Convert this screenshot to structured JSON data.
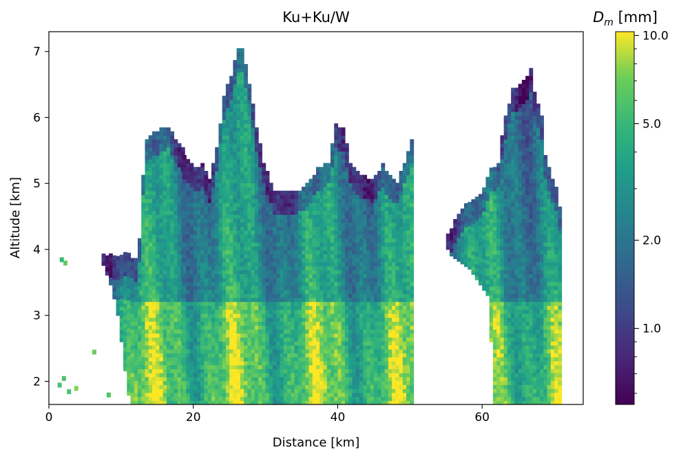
{
  "chart_data": {
    "type": "heatmap",
    "title": "Ku+Ku/W",
    "xlabel": "Distance [km]",
    "ylabel": "Altitude [km]",
    "xlim": [
      0,
      74
    ],
    "ylim": [
      1.65,
      7.3
    ],
    "xticks": [
      {
        "value": 0,
        "label": "0"
      },
      {
        "value": 20,
        "label": "20"
      },
      {
        "value": 40,
        "label": "40"
      },
      {
        "value": 60,
        "label": "60"
      }
    ],
    "yticks": [
      {
        "value": 2,
        "label": "2"
      },
      {
        "value": 3,
        "label": "3"
      },
      {
        "value": 4,
        "label": "4"
      },
      {
        "value": 5,
        "label": "5"
      },
      {
        "value": 6,
        "label": "6"
      },
      {
        "value": 7,
        "label": "7"
      }
    ],
    "colorbar": {
      "label_main": "D",
      "label_sub": "m",
      "label_unit": " [mm]",
      "scale": "log",
      "range": [
        0.55,
        10.3
      ],
      "colormap": "viridis",
      "major_ticks": [
        {
          "value": 1.0,
          "label": "1.0"
        },
        {
          "value": 2.0,
          "label": "2.0"
        },
        {
          "value": 5.0,
          "label": "5.0"
        },
        {
          "value": 10.0,
          "label": "10.0"
        }
      ],
      "minor_ticks": [
        0.6,
        0.7,
        0.8,
        0.9,
        3,
        4,
        6,
        7,
        8,
        9
      ]
    },
    "colors": [
      "#440154",
      "#3b528b",
      "#21918c",
      "#5ec962",
      "#fde725"
    ],
    "regions": [
      {
        "name": "left-cell",
        "x_start": 6.8,
        "x_end": 18.5,
        "top": [
          [
            6.8,
            3.9
          ],
          [
            8,
            3.9
          ],
          [
            9.5,
            3.88
          ],
          [
            10.5,
            3.95
          ],
          [
            11.5,
            3.85
          ],
          [
            12,
            3.8
          ],
          [
            12.5,
            4.4
          ],
          [
            13,
            5.6
          ],
          [
            13.5,
            5.65
          ],
          [
            14,
            5.7
          ],
          [
            14.5,
            5.75
          ],
          [
            15.5,
            5.8
          ],
          [
            16.5,
            5.85
          ],
          [
            17.5,
            5.6
          ],
          [
            18.5,
            5.5
          ]
        ]
      },
      {
        "name": "central-cell",
        "x_start": 18.5,
        "x_end": 50.5,
        "top": [
          [
            18.5,
            5.4
          ],
          [
            20,
            5.2
          ],
          [
            21,
            5.25
          ],
          [
            22,
            5.05
          ],
          [
            23,
            5.5
          ],
          [
            24,
            6.3
          ],
          [
            25,
            6.6
          ],
          [
            25.8,
            7.0
          ],
          [
            26.5,
            7.0
          ],
          [
            27.5,
            6.5
          ],
          [
            28.5,
            5.8
          ],
          [
            29.5,
            5.3
          ],
          [
            31,
            4.85
          ],
          [
            33,
            4.85
          ],
          [
            35,
            4.9
          ],
          [
            37,
            5.2
          ],
          [
            38.5,
            5.3
          ],
          [
            39.5,
            5.85
          ],
          [
            40.5,
            5.8
          ],
          [
            41.5,
            5.3
          ],
          [
            43,
            5.1
          ],
          [
            44.5,
            5.05
          ],
          [
            46,
            5.25
          ],
          [
            47,
            5.1
          ],
          [
            48,
            5.0
          ],
          [
            49,
            5.3
          ],
          [
            50,
            5.65
          ],
          [
            50.5,
            5.0
          ]
        ]
      },
      {
        "name": "right-cell",
        "x_start": 54.5,
        "x_end": 70.7,
        "top": [
          [
            54.5,
            4.1
          ],
          [
            56,
            4.4
          ],
          [
            57,
            4.6
          ],
          [
            58,
            4.7
          ],
          [
            59,
            4.75
          ],
          [
            60,
            4.9
          ],
          [
            61,
            5.2
          ],
          [
            62,
            5.25
          ],
          [
            62.5,
            5.7
          ],
          [
            63,
            6.0
          ],
          [
            63.5,
            6.2
          ],
          [
            64,
            6.4
          ],
          [
            65,
            6.45
          ],
          [
            66,
            6.6
          ],
          [
            66.5,
            6.7
          ],
          [
            67,
            6.35
          ],
          [
            68,
            6.0
          ],
          [
            68.5,
            5.4
          ],
          [
            69,
            5.2
          ],
          [
            70,
            4.9
          ],
          [
            70.7,
            4.5
          ]
        ]
      }
    ],
    "tall_tower_bottom": {
      "left-cell": [
        [
          6.8,
          3.9
        ],
        [
          7.5,
          3.7
        ],
        [
          8.5,
          3.4
        ],
        [
          9.5,
          2.9
        ],
        [
          10,
          2.4
        ],
        [
          10.5,
          2.0
        ],
        [
          11,
          1.65
        ]
      ],
      "central-cell": [],
      "right-cell": [
        [
          54.5,
          4.1
        ],
        [
          55.5,
          3.9
        ],
        [
          58,
          3.7
        ],
        [
          60.5,
          3.3
        ],
        [
          61,
          2.6
        ],
        [
          61.5,
          1.65
        ]
      ]
    },
    "right_edges": {
      "central-cell": [
        [
          50.5,
          5.0
        ],
        [
          50.2,
          4.6
        ],
        [
          49.5,
          4.3
        ],
        [
          48,
          3.9
        ],
        [
          46.5,
          3.5
        ],
        [
          46.8,
          2.8
        ],
        [
          47,
          2.3
        ],
        [
          46.8,
          1.65
        ]
      ],
      "right-cell": [
        [
          70.7,
          4.5
        ],
        [
          70.8,
          3.9
        ],
        [
          70.5,
          3.0
        ],
        [
          70.3,
          2.2
        ],
        [
          69.7,
          1.65
        ]
      ]
    }
  }
}
